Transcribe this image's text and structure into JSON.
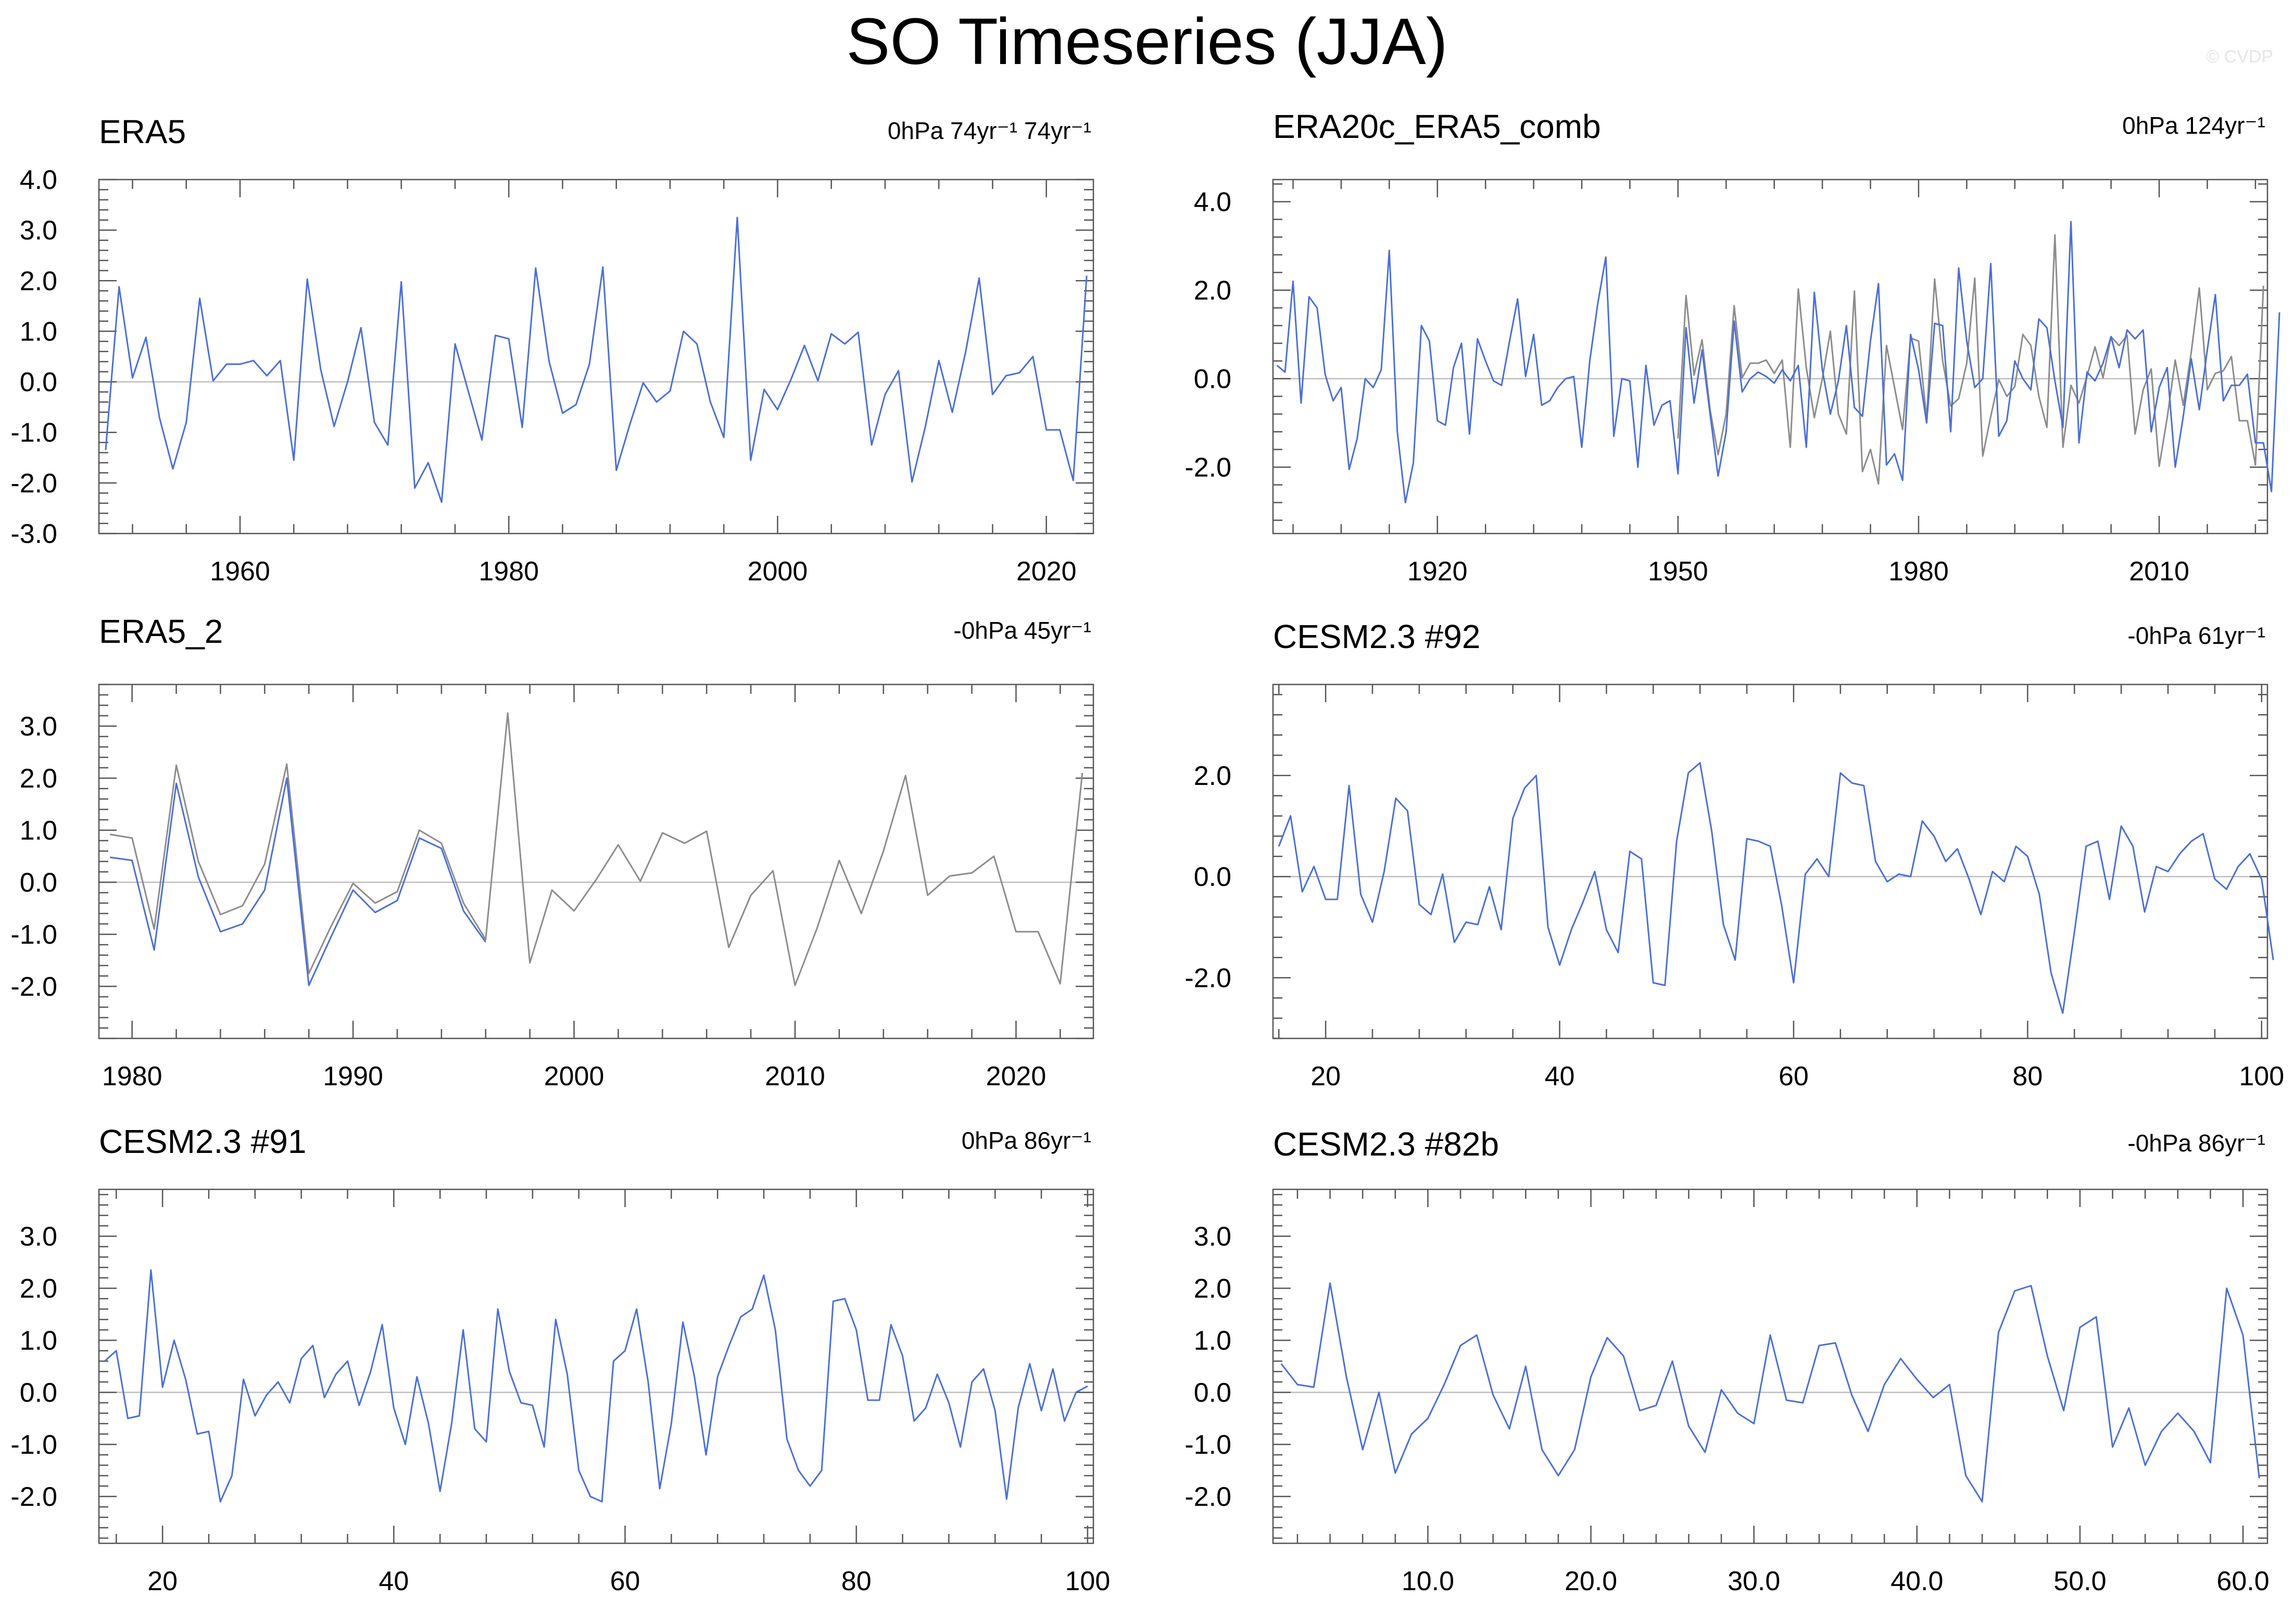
{
  "title": "SO Timeseries (JJA)",
  "copyright": "© CVDP",
  "colors": {
    "series_primary": "#4a6fd6",
    "series_secondary": "#8c8c8c",
    "zero_line": "#bdbdbd",
    "frame": "#555555"
  },
  "chart_data": [
    {
      "type": "line",
      "title": "ERA5",
      "info": "0hPa 74yr⁻¹ 74yr⁻¹",
      "xlim": [
        1949.5,
        2023.5
      ],
      "ylim": [
        -3.0,
        4.0
      ],
      "xticks": [
        1960,
        1980,
        2000,
        2020
      ],
      "xtick_labels": [
        "1960",
        "1980",
        "2000",
        "2020"
      ],
      "yticks": [
        4.0,
        3.0,
        2.0,
        1.0,
        0.0,
        -1.0,
        -2.0,
        -3.0
      ],
      "ytick_labels": [
        "4.0",
        "3.0",
        "2.0",
        "1.0",
        "0.0",
        "-1.0",
        "-2.0",
        "-3.0"
      ],
      "series": [
        {
          "role": "primary",
          "x_start": 1950,
          "values": [
            -1.35,
            1.88,
            0.08,
            0.88,
            -0.7,
            -1.72,
            -0.8,
            1.65,
            0.02,
            0.35,
            0.35,
            0.42,
            0.12,
            0.42,
            -1.55,
            2.03,
            0.25,
            -0.88,
            0.0,
            1.07,
            -0.8,
            -1.25,
            1.98,
            -2.1,
            -1.6,
            -2.38,
            0.75,
            -0.2,
            -1.15,
            0.92,
            0.85,
            -0.9,
            2.25,
            0.4,
            -0.62,
            -0.45,
            0.35,
            2.27,
            -1.75,
            -0.85,
            -0.02,
            -0.4,
            -0.18,
            1.0,
            0.75,
            -0.4,
            -1.1,
            3.25,
            -1.55,
            -0.15,
            -0.55,
            0.05,
            0.72,
            0.02,
            0.95,
            0.75,
            0.98,
            -1.25,
            -0.25,
            0.22,
            -1.98,
            -0.88,
            0.42,
            -0.6,
            0.6,
            2.05,
            -0.25,
            0.12,
            0.18,
            0.5,
            -0.95,
            -0.95,
            -1.95,
            2.1
          ]
        }
      ]
    },
    {
      "type": "line",
      "title": "ERA20c_ERA5_comb",
      "info": "0hPa 124yr⁻¹",
      "xlim": [
        1899.5,
        2023.5
      ],
      "ylim": [
        -3.5,
        4.5
      ],
      "xticks": [
        1920,
        1950,
        1980,
        2010
      ],
      "xtick_labels": [
        "1920",
        "1950",
        "1980",
        "2010"
      ],
      "yticks": [
        4.0,
        2.0,
        0.0,
        -2.0
      ],
      "ytick_labels": [
        "4.0",
        "2.0",
        "0.0",
        "-2.0"
      ],
      "series": [
        {
          "role": "secondary",
          "x_start": 1950,
          "values": [
            -1.35,
            1.88,
            0.08,
            0.88,
            -0.7,
            -1.72,
            -0.8,
            1.65,
            0.02,
            0.35,
            0.35,
            0.42,
            0.12,
            0.42,
            -1.55,
            2.03,
            0.25,
            -0.88,
            0.0,
            1.07,
            -0.8,
            -1.25,
            1.98,
            -2.1,
            -1.6,
            -2.38,
            0.75,
            -0.2,
            -1.15,
            0.92,
            0.85,
            -0.9,
            2.25,
            0.4,
            -0.62,
            -0.45,
            0.35,
            2.27,
            -1.75,
            -0.85,
            -0.02,
            -0.4,
            -0.18,
            1.0,
            0.75,
            -0.4,
            -1.1,
            3.25,
            -1.55,
            -0.15,
            -0.55,
            0.05,
            0.72,
            0.02,
            0.95,
            0.75,
            0.98,
            -1.25,
            -0.25,
            0.22,
            -1.98,
            -0.88,
            0.42,
            -0.6,
            0.6,
            2.05,
            -0.25,
            0.12,
            0.18,
            0.5,
            -0.95,
            -0.95,
            -1.95,
            2.1
          ]
        },
        {
          "role": "primary",
          "x_start": 1900,
          "values": [
            0.3,
            0.15,
            2.2,
            -0.55,
            1.85,
            1.6,
            0.1,
            -0.5,
            -0.2,
            -2.05,
            -1.35,
            0.0,
            -0.2,
            0.2,
            2.9,
            -1.2,
            -2.8,
            -1.9,
            1.2,
            0.85,
            -0.95,
            -1.05,
            0.25,
            0.8,
            -1.25,
            0.9,
            0.4,
            -0.05,
            -0.15,
            0.85,
            1.8,
            0.05,
            1.0,
            -0.6,
            -0.5,
            -0.2,
            0.0,
            0.05,
            -1.55,
            0.4,
            1.7,
            2.75,
            -1.3,
            0.0,
            -0.05,
            -2.0,
            0.3,
            -1.05,
            -0.6,
            -0.5,
            -2.15,
            1.15,
            -0.55,
            0.65,
            -0.8,
            -2.2,
            -1.2,
            1.3,
            -0.3,
            0.0,
            0.15,
            0.05,
            -0.1,
            0.2,
            -0.05,
            0.3,
            -1.55,
            1.95,
            0.2,
            -0.8,
            -0.05,
            1.2,
            -0.65,
            -0.85,
            0.85,
            2.15,
            -1.95,
            -1.7,
            -2.3,
            1.0,
            0.2,
            -1.0,
            1.25,
            1.2,
            -1.2,
            2.5,
            0.85,
            -0.2,
            0.0,
            2.6,
            -1.3,
            -0.95,
            0.4,
            0.0,
            -0.25,
            1.35,
            1.15,
            -0.05,
            -1.1,
            3.55,
            -1.45,
            0.15,
            -0.05,
            0.35,
            0.95,
            0.25,
            1.1,
            0.9,
            1.1,
            -1.2,
            -0.2,
            0.25,
            -2.0,
            -0.85,
            0.45,
            -0.7,
            0.65,
            1.9,
            -0.5,
            -0.15,
            -0.15,
            0.1,
            -1.45,
            -1.45,
            -2.55,
            1.5
          ]
        }
      ]
    },
    {
      "type": "line",
      "title": "ERA5_2",
      "info": "-0hPa 45yr⁻¹",
      "xlim": [
        1978.5,
        2023.5
      ],
      "ylim": [
        -3.0,
        3.8
      ],
      "xticks": [
        1980,
        1990,
        2000,
        2010,
        2020
      ],
      "xtick_labels": [
        "1980",
        "1990",
        "2000",
        "2010",
        "2020"
      ],
      "yticks": [
        3.0,
        2.0,
        1.0,
        0.0,
        -1.0,
        -2.0
      ],
      "ytick_labels": [
        "3.0",
        "2.0",
        "1.0",
        "0.0",
        "-1.0",
        "-2.0"
      ],
      "series": [
        {
          "role": "secondary",
          "x_start": 1979,
          "values": [
            0.92,
            0.85,
            -0.9,
            2.25,
            0.4,
            -0.62,
            -0.45,
            0.35,
            2.27,
            -1.75,
            -0.85,
            -0.02,
            -0.4,
            -0.18,
            1.0,
            0.75,
            -0.4,
            -1.1,
            3.25,
            -1.55,
            -0.15,
            -0.55,
            0.05,
            0.72,
            0.02,
            0.95,
            0.75,
            0.98,
            -1.25,
            -0.25,
            0.22,
            -1.98,
            -0.88,
            0.42,
            -0.6,
            0.6,
            2.05,
            -0.25,
            0.12,
            0.18,
            0.5,
            -0.95,
            -0.95,
            -1.95,
            2.1
          ]
        },
        {
          "role": "primary",
          "x_start": 1979,
          "values": [
            0.48,
            0.42,
            -1.3,
            1.9,
            0.1,
            -0.95,
            -0.8,
            -0.15,
            2.0,
            -1.98,
            -1.05,
            -0.15,
            -0.58,
            -0.35,
            0.85,
            0.65,
            -0.55,
            -1.15
          ]
        }
      ]
    },
    {
      "type": "line",
      "title": "CESM2.3 #92",
      "info": "-0hPa 61yr⁻¹",
      "xlim": [
        15.5,
        100.5
      ],
      "ylim": [
        -3.2,
        3.8
      ],
      "xticks": [
        20,
        40,
        60,
        80,
        100
      ],
      "xtick_labels": [
        "20",
        "40",
        "60",
        "80",
        "100"
      ],
      "yticks": [
        2.0,
        0.0,
        -2.0
      ],
      "ytick_labels": [
        "2.0",
        "0.0",
        "-2.0"
      ],
      "series": [
        {
          "role": "primary",
          "x_start": 16,
          "values": [
            0.6,
            1.2,
            -0.3,
            0.2,
            -0.45,
            -0.45,
            1.8,
            -0.35,
            -0.9,
            0.1,
            1.55,
            1.3,
            -0.55,
            -0.75,
            0.05,
            -1.3,
            -0.9,
            -0.95,
            -0.2,
            -1.05,
            1.15,
            1.75,
            2.0,
            -1.0,
            -1.75,
            -1.05,
            -0.5,
            0.1,
            -1.05,
            -1.5,
            0.5,
            0.35,
            -2.1,
            -2.15,
            0.7,
            2.05,
            2.25,
            0.9,
            -0.95,
            -1.65,
            0.75,
            0.7,
            0.6,
            -0.6,
            -2.1,
            0.05,
            0.35,
            0.0,
            2.05,
            1.85,
            1.8,
            0.3,
            -0.1,
            0.05,
            0.0,
            1.1,
            0.8,
            0.3,
            0.55,
            -0.05,
            -0.75,
            0.1,
            -0.1,
            0.6,
            0.4,
            -0.35,
            -1.9,
            -2.7,
            -1.1,
            0.6,
            0.7,
            -0.45,
            1.0,
            0.6,
            -0.7,
            0.2,
            0.1,
            0.45,
            0.7,
            0.85,
            -0.05,
            -0.25,
            0.2,
            0.45,
            -0.05,
            -1.65
          ]
        }
      ]
    },
    {
      "type": "line",
      "title": "CESM2.3 #91",
      "info": "0hPa 86yr⁻¹",
      "xlim": [
        14.5,
        100.5
      ],
      "ylim": [
        -2.9,
        3.9
      ],
      "xticks": [
        20,
        40,
        60,
        80,
        100
      ],
      "xtick_labels": [
        "20",
        "40",
        "60",
        "80",
        "100"
      ],
      "yticks": [
        3.0,
        2.0,
        1.0,
        0.0,
        -1.0,
        -2.0
      ],
      "ytick_labels": [
        "3.0",
        "2.0",
        "1.0",
        "0.0",
        "-1.0",
        "-2.0"
      ],
      "series": [
        {
          "role": "primary",
          "x_start": 15,
          "values": [
            0.6,
            0.8,
            -0.5,
            -0.45,
            2.35,
            0.1,
            1.0,
            0.25,
            -0.8,
            -0.75,
            -2.1,
            -1.6,
            0.25,
            -0.45,
            -0.05,
            0.2,
            -0.2,
            0.65,
            0.9,
            -0.1,
            0.35,
            0.6,
            -0.25,
            0.4,
            1.3,
            -0.3,
            -1.0,
            0.3,
            -0.6,
            -1.9,
            -0.6,
            1.2,
            -0.7,
            -0.95,
            1.6,
            0.4,
            -0.2,
            -0.25,
            -1.05,
            1.4,
            0.35,
            -1.5,
            -2.0,
            -2.1,
            0.6,
            0.8,
            1.6,
            0.2,
            -1.85,
            -0.6,
            1.35,
            0.3,
            -1.2,
            0.3,
            0.9,
            1.45,
            1.6,
            2.25,
            1.2,
            -0.9,
            -1.5,
            -1.8,
            -1.5,
            1.75,
            1.8,
            1.2,
            -0.15,
            -0.15,
            1.3,
            0.7,
            -0.55,
            -0.3,
            0.35,
            -0.2,
            -1.05,
            0.2,
            0.45,
            -0.35,
            -2.05,
            -0.3,
            0.55,
            -0.35,
            0.45,
            -0.55,
            0.0,
            0.12
          ]
        }
      ]
    },
    {
      "type": "line",
      "title": "CESM2.3 #82b",
      "info": "-0hPa 86yr⁻¹",
      "xlim": [
        0.5,
        61.5
      ],
      "ylim": [
        -2.9,
        3.9
      ],
      "xticks": [
        10,
        20,
        30,
        40,
        50,
        60
      ],
      "xtick_labels": [
        "10.0",
        "20.0",
        "30.0",
        "40.0",
        "50.0",
        "60.0"
      ],
      "yticks": [
        3.0,
        2.0,
        1.0,
        0.0,
        -1.0,
        -2.0
      ],
      "ytick_labels": [
        "3.0",
        "2.0",
        "1.0",
        "0.0",
        "-1.0",
        "-2.0"
      ],
      "series": [
        {
          "role": "primary",
          "x_start": 1,
          "values": [
            0.55,
            0.15,
            0.1,
            2.1,
            0.3,
            -1.1,
            0.0,
            -1.55,
            -0.8,
            -0.5,
            0.15,
            0.9,
            1.1,
            -0.05,
            -0.7,
            0.5,
            -1.1,
            -1.6,
            -1.1,
            0.3,
            1.05,
            0.7,
            -0.35,
            -0.25,
            0.6,
            -0.65,
            -1.15,
            0.05,
            -0.4,
            -0.6,
            1.1,
            -0.15,
            -0.2,
            0.9,
            0.95,
            -0.05,
            -0.75,
            0.15,
            0.65,
            0.25,
            -0.1,
            0.15,
            -1.6,
            -2.1,
            1.15,
            1.95,
            2.05,
            0.7,
            -0.35,
            1.25,
            1.45,
            -1.05,
            -0.3,
            -1.4,
            -0.75,
            -0.4,
            -0.75,
            -1.35,
            2.0,
            1.1,
            -1.65
          ]
        }
      ]
    }
  ]
}
